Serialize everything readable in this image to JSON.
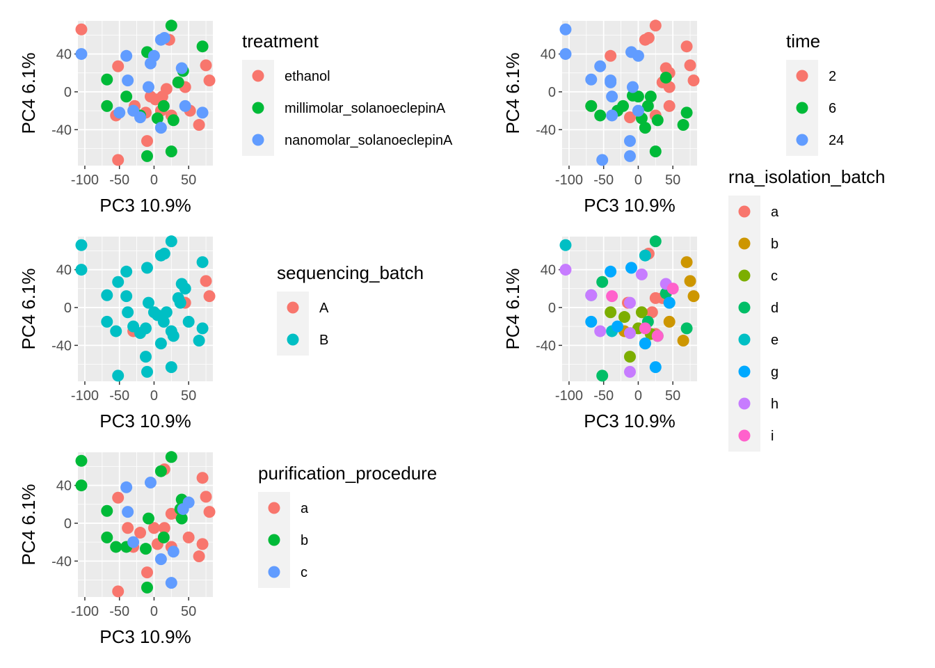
{
  "palette": {
    "hue2": [
      "#F8766D",
      "#00BFC4"
    ],
    "hue3": [
      "#F8766D",
      "#00BA38",
      "#619CFF"
    ],
    "hue8": [
      "#F8766D",
      "#CD9600",
      "#7CAE00",
      "#00BE67",
      "#00BFC4",
      "#00A9FF",
      "#C77CFF",
      "#FF61CC"
    ],
    "panel_bg": "#EBEBEB",
    "grid": "#FFFFFF"
  },
  "chart_data": [
    {
      "type": "scatter",
      "xlabel": "PC3 10.9%",
      "ylabel": "PC4 6.1%",
      "xlim": [
        -110,
        85
      ],
      "ylim": [
        -78,
        75
      ],
      "xticks": [
        -100,
        -50,
        0,
        50
      ],
      "yticks": [
        -40,
        0,
        40
      ],
      "legend": {
        "title": "treatment",
        "placement": "right",
        "entries": [
          "ethanol",
          "millimolar_solanoeclepinA",
          "nanomolar_solanoeclepinA"
        ]
      },
      "points": [
        [
          -105,
          66,
          0
        ],
        [
          -52,
          27,
          0
        ],
        [
          -12,
          -22,
          0
        ],
        [
          -5,
          -5,
          0
        ],
        [
          2,
          -8,
          0
        ],
        [
          12,
          -5,
          0
        ],
        [
          18,
          3,
          0
        ],
        [
          25,
          -25,
          0
        ],
        [
          35,
          10,
          0
        ],
        [
          45,
          5,
          0
        ],
        [
          52,
          -20,
          0
        ],
        [
          65,
          -35,
          0
        ],
        [
          75,
          28,
          0
        ],
        [
          80,
          12,
          0
        ],
        [
          -55,
          -25,
          0
        ],
        [
          -10,
          -52,
          0
        ],
        [
          -52,
          -72,
          0
        ],
        [
          10,
          -20,
          0
        ],
        [
          -28,
          -15,
          0
        ],
        [
          22,
          55,
          0
        ],
        [
          -68,
          13,
          1
        ],
        [
          -68,
          -15,
          1
        ],
        [
          -40,
          -5,
          1
        ],
        [
          -10,
          42,
          1
        ],
        [
          5,
          -28,
          1
        ],
        [
          14,
          -15,
          1
        ],
        [
          25,
          70,
          1
        ],
        [
          28,
          -30,
          1
        ],
        [
          35,
          10,
          1
        ],
        [
          42,
          22,
          1
        ],
        [
          70,
          48,
          1
        ],
        [
          -10,
          -68,
          1
        ],
        [
          25,
          -63,
          1
        ],
        [
          -20,
          -25,
          1
        ],
        [
          -105,
          40,
          2
        ],
        [
          -50,
          -22,
          2
        ],
        [
          -40,
          38,
          2
        ],
        [
          -38,
          12,
          2
        ],
        [
          -30,
          -20,
          2
        ],
        [
          -20,
          -27,
          2
        ],
        [
          -8,
          5,
          2
        ],
        [
          0,
          38,
          2
        ],
        [
          10,
          55,
          2
        ],
        [
          15,
          57,
          2
        ],
        [
          10,
          -38,
          2
        ],
        [
          40,
          25,
          2
        ],
        [
          45,
          -15,
          2
        ],
        [
          70,
          -22,
          2
        ],
        [
          -5,
          30,
          2
        ]
      ]
    },
    {
      "type": "scatter",
      "xlabel": "PC3 10.9%",
      "ylabel": "PC4 6.1%",
      "xlim": [
        -110,
        85
      ],
      "ylim": [
        -78,
        75
      ],
      "xticks": [
        -100,
        -50,
        0,
        50
      ],
      "yticks": [
        -40,
        0,
        40
      ],
      "legend": {
        "title": "time",
        "placement": "right",
        "entries": [
          "2",
          "6",
          "24"
        ]
      },
      "points": [
        [
          -40,
          38,
          0
        ],
        [
          10,
          55,
          0
        ],
        [
          15,
          57,
          0
        ],
        [
          25,
          70,
          0
        ],
        [
          35,
          10,
          0
        ],
        [
          40,
          25,
          0
        ],
        [
          45,
          20,
          0
        ],
        [
          45,
          5,
          0
        ],
        [
          70,
          48,
          0
        ],
        [
          75,
          28,
          0
        ],
        [
          80,
          12,
          0
        ],
        [
          -12,
          -27,
          0
        ],
        [
          25,
          -25,
          0
        ],
        [
          45,
          -15,
          0
        ],
        [
          -68,
          -15,
          0
        ],
        [
          -68,
          -15,
          1
        ],
        [
          -55,
          -25,
          1
        ],
        [
          -30,
          -20,
          1
        ],
        [
          -22,
          -15,
          1
        ],
        [
          0,
          -5,
          1
        ],
        [
          5,
          -28,
          1
        ],
        [
          10,
          -38,
          1
        ],
        [
          14,
          -15,
          1
        ],
        [
          18,
          -5,
          1
        ],
        [
          28,
          -30,
          1
        ],
        [
          40,
          15,
          1
        ],
        [
          65,
          -35,
          1
        ],
        [
          70,
          -22,
          1
        ],
        [
          25,
          -63,
          1
        ],
        [
          -8,
          -4,
          1
        ],
        [
          -105,
          66,
          2
        ],
        [
          -105,
          40,
          2
        ],
        [
          -68,
          13,
          2
        ],
        [
          -55,
          27,
          2
        ],
        [
          -40,
          12,
          2
        ],
        [
          -38,
          -5,
          2
        ],
        [
          -38,
          -25,
          2
        ],
        [
          -10,
          42,
          2
        ],
        [
          -8,
          5,
          2
        ],
        [
          0,
          -20,
          2
        ],
        [
          0,
          38,
          2
        ],
        [
          -12,
          -52,
          2
        ],
        [
          -12,
          -68,
          2
        ],
        [
          -52,
          -72,
          2
        ],
        [
          -40,
          10,
          2
        ]
      ]
    },
    {
      "type": "scatter",
      "xlabel": "PC3 10.9%",
      "ylabel": "PC4 6.1%",
      "xlim": [
        -110,
        85
      ],
      "ylim": [
        -78,
        75
      ],
      "xticks": [
        -100,
        -50,
        0,
        50
      ],
      "yticks": [
        -40,
        0,
        40
      ],
      "legend": {
        "title": "sequencing_batch",
        "placement": "right",
        "entries": [
          "A",
          "B"
        ]
      },
      "points": [
        [
          75,
          28,
          0
        ],
        [
          80,
          12,
          0
        ],
        [
          45,
          5,
          0
        ],
        [
          -30,
          -25,
          0
        ],
        [
          -105,
          66,
          1
        ],
        [
          -105,
          40,
          1
        ],
        [
          -52,
          27,
          1
        ],
        [
          -40,
          38,
          1
        ],
        [
          -68,
          13,
          1
        ],
        [
          -40,
          12,
          1
        ],
        [
          -38,
          -5,
          1
        ],
        [
          -68,
          -15,
          1
        ],
        [
          -55,
          -25,
          1
        ],
        [
          -30,
          -20,
          1
        ],
        [
          -20,
          -27,
          1
        ],
        [
          -12,
          -22,
          1
        ],
        [
          -8,
          5,
          1
        ],
        [
          -10,
          42,
          1
        ],
        [
          0,
          -5,
          1
        ],
        [
          5,
          -8,
          1
        ],
        [
          10,
          55,
          1
        ],
        [
          15,
          57,
          1
        ],
        [
          25,
          70,
          1
        ],
        [
          10,
          -38,
          1
        ],
        [
          14,
          -15,
          1
        ],
        [
          18,
          -5,
          1
        ],
        [
          25,
          -25,
          1
        ],
        [
          28,
          -30,
          1
        ],
        [
          35,
          10,
          1
        ],
        [
          40,
          25,
          1
        ],
        [
          45,
          20,
          1
        ],
        [
          50,
          -15,
          1
        ],
        [
          65,
          -35,
          1
        ],
        [
          70,
          -22,
          1
        ],
        [
          70,
          48,
          1
        ],
        [
          -12,
          -52,
          1
        ],
        [
          -10,
          -68,
          1
        ],
        [
          25,
          -63,
          1
        ],
        [
          -52,
          -72,
          1
        ],
        [
          38,
          5,
          1
        ]
      ]
    },
    {
      "type": "scatter",
      "xlabel": "PC3 10.9%",
      "ylabel": "PC4 6.1%",
      "xlim": [
        -110,
        85
      ],
      "ylim": [
        -78,
        75
      ],
      "xticks": [
        -100,
        -50,
        0,
        50
      ],
      "yticks": [
        -40,
        0,
        40
      ],
      "legend": {
        "title": "rna_isolation_batch",
        "placement": "right",
        "entries": [
          "a",
          "b",
          "c",
          "d",
          "e",
          "g",
          "h",
          "i"
        ]
      },
      "points": [
        [
          15,
          57,
          0
        ],
        [
          20,
          -5,
          0
        ],
        [
          25,
          10,
          0
        ],
        [
          25,
          -28,
          0
        ],
        [
          35,
          10,
          0
        ],
        [
          -15,
          5,
          0
        ],
        [
          70,
          48,
          1
        ],
        [
          75,
          28,
          1
        ],
        [
          80,
          12,
          1
        ],
        [
          65,
          -35,
          1
        ],
        [
          45,
          -15,
          1
        ],
        [
          -20,
          -25,
          1
        ],
        [
          -40,
          -5,
          2
        ],
        [
          -12,
          -52,
          2
        ],
        [
          0,
          -22,
          2
        ],
        [
          5,
          -5,
          2
        ],
        [
          -20,
          -10,
          2
        ],
        [
          18,
          -28,
          2
        ],
        [
          -52,
          27,
          3
        ],
        [
          25,
          70,
          3
        ],
        [
          10,
          -38,
          3
        ],
        [
          14,
          -15,
          3
        ],
        [
          40,
          15,
          3
        ],
        [
          70,
          -22,
          3
        ],
        [
          -52,
          -72,
          3
        ],
        [
          28,
          -30,
          3
        ],
        [
          -105,
          66,
          4
        ],
        [
          10,
          55,
          4
        ],
        [
          45,
          5,
          4
        ],
        [
          -68,
          13,
          4
        ],
        [
          -38,
          -25,
          4
        ],
        [
          -40,
          38,
          5
        ],
        [
          -68,
          -15,
          5
        ],
        [
          -30,
          -20,
          5
        ],
        [
          -10,
          42,
          5
        ],
        [
          10,
          -38,
          5
        ],
        [
          25,
          -63,
          5
        ],
        [
          45,
          5,
          5
        ],
        [
          -105,
          40,
          6
        ],
        [
          -68,
          13,
          6
        ],
        [
          -55,
          -25,
          6
        ],
        [
          -12,
          5,
          6
        ],
        [
          5,
          35,
          6
        ],
        [
          -12,
          -27,
          6
        ],
        [
          -12,
          -68,
          6
        ],
        [
          40,
          25,
          6
        ],
        [
          -38,
          12,
          7
        ],
        [
          28,
          -30,
          7
        ],
        [
          50,
          20,
          7
        ],
        [
          10,
          -22,
          7
        ]
      ]
    },
    {
      "type": "scatter",
      "xlabel": "PC3 10.9%",
      "ylabel": "PC4 6.1%",
      "xlim": [
        -110,
        85
      ],
      "ylim": [
        -78,
        75
      ],
      "xticks": [
        -100,
        -50,
        0,
        50
      ],
      "yticks": [
        -40,
        0,
        40
      ],
      "legend": {
        "title": "purification_procedure",
        "placement": "right",
        "entries": [
          "a",
          "b",
          "c"
        ]
      },
      "points": [
        [
          -52,
          27,
          0
        ],
        [
          -38,
          -5,
          0
        ],
        [
          -30,
          -25,
          0
        ],
        [
          -20,
          -10,
          0
        ],
        [
          -10,
          -52,
          0
        ],
        [
          -52,
          -72,
          0
        ],
        [
          0,
          -5,
          0
        ],
        [
          5,
          -22,
          0
        ],
        [
          15,
          57,
          0
        ],
        [
          25,
          10,
          0
        ],
        [
          25,
          -25,
          0
        ],
        [
          35,
          10,
          0
        ],
        [
          50,
          -15,
          0
        ],
        [
          65,
          -35,
          0
        ],
        [
          70,
          -22,
          0
        ],
        [
          70,
          48,
          0
        ],
        [
          75,
          28,
          0
        ],
        [
          80,
          12,
          0
        ],
        [
          15,
          -5,
          0
        ],
        [
          -105,
          66,
          1
        ],
        [
          -105,
          40,
          1
        ],
        [
          -68,
          13,
          1
        ],
        [
          -68,
          -15,
          1
        ],
        [
          -55,
          -25,
          1
        ],
        [
          -40,
          -25,
          1
        ],
        [
          -12,
          -27,
          1
        ],
        [
          -8,
          5,
          1
        ],
        [
          10,
          55,
          1
        ],
        [
          14,
          -15,
          1
        ],
        [
          25,
          70,
          1
        ],
        [
          40,
          25,
          1
        ],
        [
          40,
          5,
          1
        ],
        [
          -10,
          -68,
          1
        ],
        [
          38,
          15,
          1
        ],
        [
          -40,
          38,
          2
        ],
        [
          -38,
          12,
          2
        ],
        [
          -30,
          -20,
          2
        ],
        [
          -5,
          43,
          2
        ],
        [
          10,
          -38,
          2
        ],
        [
          28,
          -30,
          2
        ],
        [
          25,
          -63,
          2
        ],
        [
          42,
          15,
          2
        ],
        [
          50,
          22,
          2
        ]
      ]
    }
  ]
}
